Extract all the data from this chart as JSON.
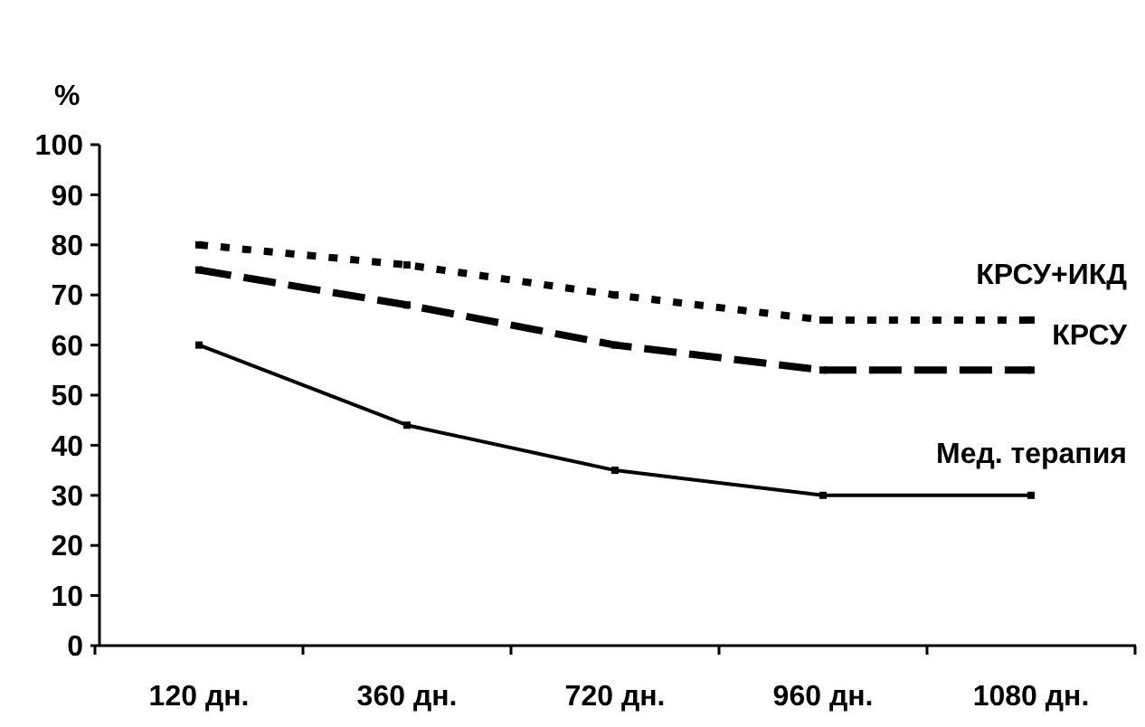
{
  "chart_data": {
    "type": "line",
    "ylabel": "%",
    "categories": [
      "120 дн.",
      "360 дн.",
      "720 дн.",
      "960 дн.",
      "1080 дн."
    ],
    "series": [
      {
        "name": "КРСУ+ИКД",
        "color": "#000000",
        "line_style": "dotted",
        "values": [
          80,
          76,
          70,
          65,
          65
        ]
      },
      {
        "name": "КРСУ",
        "color": "#000000",
        "line_style": "dashed",
        "values": [
          75,
          68,
          60,
          55,
          55
        ]
      },
      {
        "name": "Мед. терапия",
        "color": "#000000",
        "line_style": "solid",
        "values": [
          60,
          44,
          35,
          30,
          30
        ]
      }
    ],
    "ylim": [
      0,
      100
    ],
    "yticks": [
      0,
      10,
      20,
      30,
      40,
      50,
      60,
      70,
      80,
      90,
      100
    ],
    "grid": false,
    "marker": "square"
  }
}
